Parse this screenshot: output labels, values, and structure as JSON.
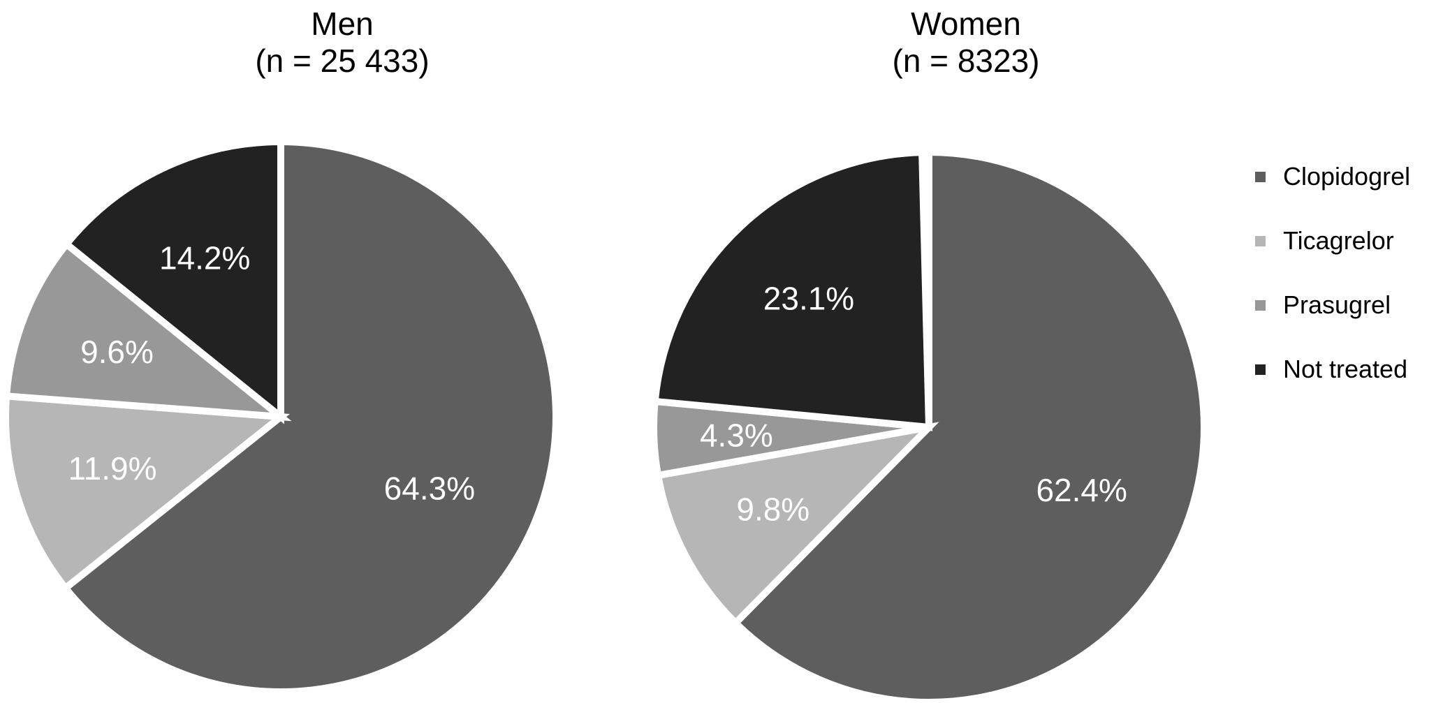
{
  "figure": {
    "background": "#ffffff",
    "separator_color": "#ffffff",
    "text_color": "#000000"
  },
  "chart_data": [
    {
      "type": "pie",
      "title": "Men",
      "subtitle": "(n = 25 433)",
      "start_angle_deg": 0,
      "direction": "clockwise",
      "label_color": "#ffffff",
      "slices": [
        {
          "label": "Clopidogrel",
          "value": 64.3,
          "display": "64.3%",
          "color": "#5e5e5e"
        },
        {
          "label": "Ticagrelor",
          "value": 11.9,
          "display": "11.9%",
          "color": "#b6b6b6"
        },
        {
          "label": "Prasugrel",
          "value": 9.6,
          "display": "9.6%",
          "color": "#989898"
        },
        {
          "label": "Not treated",
          "value": 14.2,
          "display": "14.2%",
          "color": "#222222"
        }
      ]
    },
    {
      "type": "pie",
      "title": "Women",
      "subtitle": "(n = 8323)",
      "start_angle_deg": 0,
      "direction": "clockwise",
      "label_color": "#ffffff",
      "slices": [
        {
          "label": "Clopidogrel",
          "value": 62.4,
          "display": "62.4%",
          "color": "#5e5e5e"
        },
        {
          "label": "Ticagrelor",
          "value": 9.8,
          "display": "9.8%",
          "color": "#b6b6b6"
        },
        {
          "label": "Prasugrel",
          "value": 4.3,
          "display": "4.3%",
          "color": "#989898"
        },
        {
          "label": "Not treated",
          "value": 23.1,
          "display": "23.1%",
          "color": "#222222"
        }
      ]
    }
  ],
  "legend": {
    "position": "right",
    "items": [
      {
        "label": "Clopidogrel",
        "color": "#5e5e5e"
      },
      {
        "label": "Ticagrelor",
        "color": "#b6b6b6"
      },
      {
        "label": "Prasugrel",
        "color": "#989898"
      },
      {
        "label": "Not treated",
        "color": "#222222"
      }
    ]
  }
}
